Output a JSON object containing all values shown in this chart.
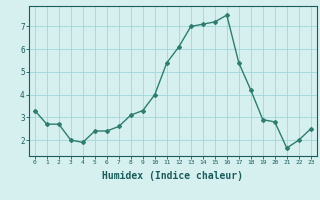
{
  "x": [
    0,
    1,
    2,
    3,
    4,
    5,
    6,
    7,
    8,
    9,
    10,
    11,
    12,
    13,
    14,
    15,
    16,
    17,
    18,
    19,
    20,
    21,
    22,
    23
  ],
  "y": [
    3.3,
    2.7,
    2.7,
    2.0,
    1.9,
    2.4,
    2.4,
    2.6,
    3.1,
    3.3,
    4.0,
    5.4,
    6.1,
    7.0,
    7.1,
    7.2,
    7.5,
    5.4,
    4.2,
    2.9,
    2.8,
    1.65,
    2.0,
    2.5
  ],
  "line_color": "#2e7d6e",
  "marker": "D",
  "marker_size": 2,
  "line_width": 1.0,
  "bg_color": "#d6f0f0",
  "grid_color": "#a0d8d8",
  "xlabel": "Humidex (Indice chaleur)",
  "xlabel_fontsize": 7,
  "tick_label_color": "#1a5c5c",
  "axis_color": "#1a5c5c",
  "xlim": [
    -0.5,
    23.5
  ],
  "ylim": [
    1.3,
    7.9
  ],
  "yticks": [
    2,
    3,
    4,
    5,
    6,
    7
  ],
  "xticks": [
    0,
    1,
    2,
    3,
    4,
    5,
    6,
    7,
    8,
    9,
    10,
    11,
    12,
    13,
    14,
    15,
    16,
    17,
    18,
    19,
    20,
    21,
    22,
    23
  ]
}
